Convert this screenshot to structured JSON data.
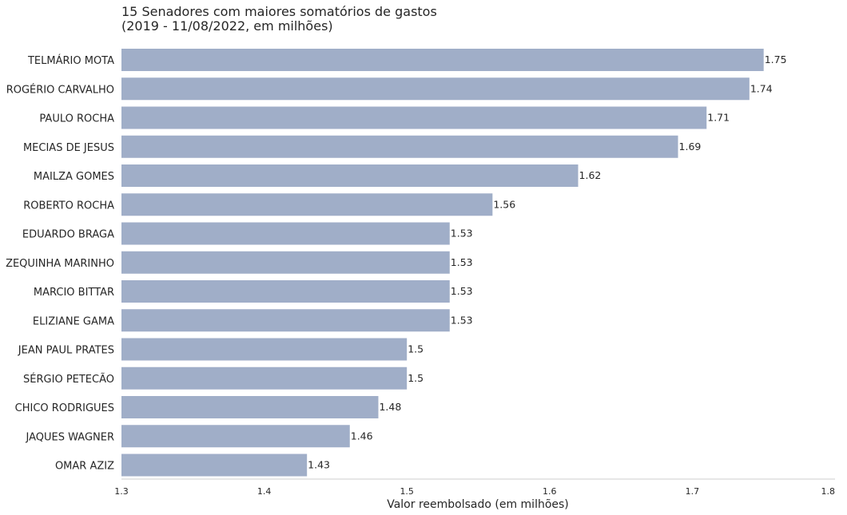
{
  "chart_data": {
    "type": "bar",
    "orientation": "horizontal",
    "title": "15 Senadores com maiores somatórios de gastos",
    "subtitle": "(2019 - 11/08/2022, em milhões)",
    "xlabel": "Valor reembolsado (em milhões)",
    "ylabel": "",
    "xlim": [
      1.3,
      1.8
    ],
    "xticks": [
      "1.3",
      "1.4",
      "1.5",
      "1.6",
      "1.7",
      "1.8"
    ],
    "grid": false,
    "bar_color": "#a0aec8",
    "categories": [
      "TELMÁRIO MOTA",
      "ROGÉRIO CARVALHO",
      "PAULO ROCHA",
      "MECIAS DE JESUS",
      "MAILZA GOMES",
      "ROBERTO ROCHA",
      "EDUARDO BRAGA",
      "ZEQUINHA MARINHO",
      "MARCIO BITTAR",
      "ELIZIANE GAMA",
      "JEAN PAUL PRATES",
      "SÉRGIO PETECÃO",
      "CHICO RODRIGUES",
      "JAQUES WAGNER",
      "OMAR AZIZ"
    ],
    "values": [
      1.75,
      1.74,
      1.71,
      1.69,
      1.62,
      1.56,
      1.53,
      1.53,
      1.53,
      1.53,
      1.5,
      1.5,
      1.48,
      1.46,
      1.43
    ],
    "value_labels": [
      "1.75",
      "1.74",
      "1.71",
      "1.69",
      "1.62",
      "1.56",
      "1.53",
      "1.53",
      "1.53",
      "1.53",
      "1.5",
      "1.5",
      "1.48",
      "1.46",
      "1.43"
    ]
  }
}
